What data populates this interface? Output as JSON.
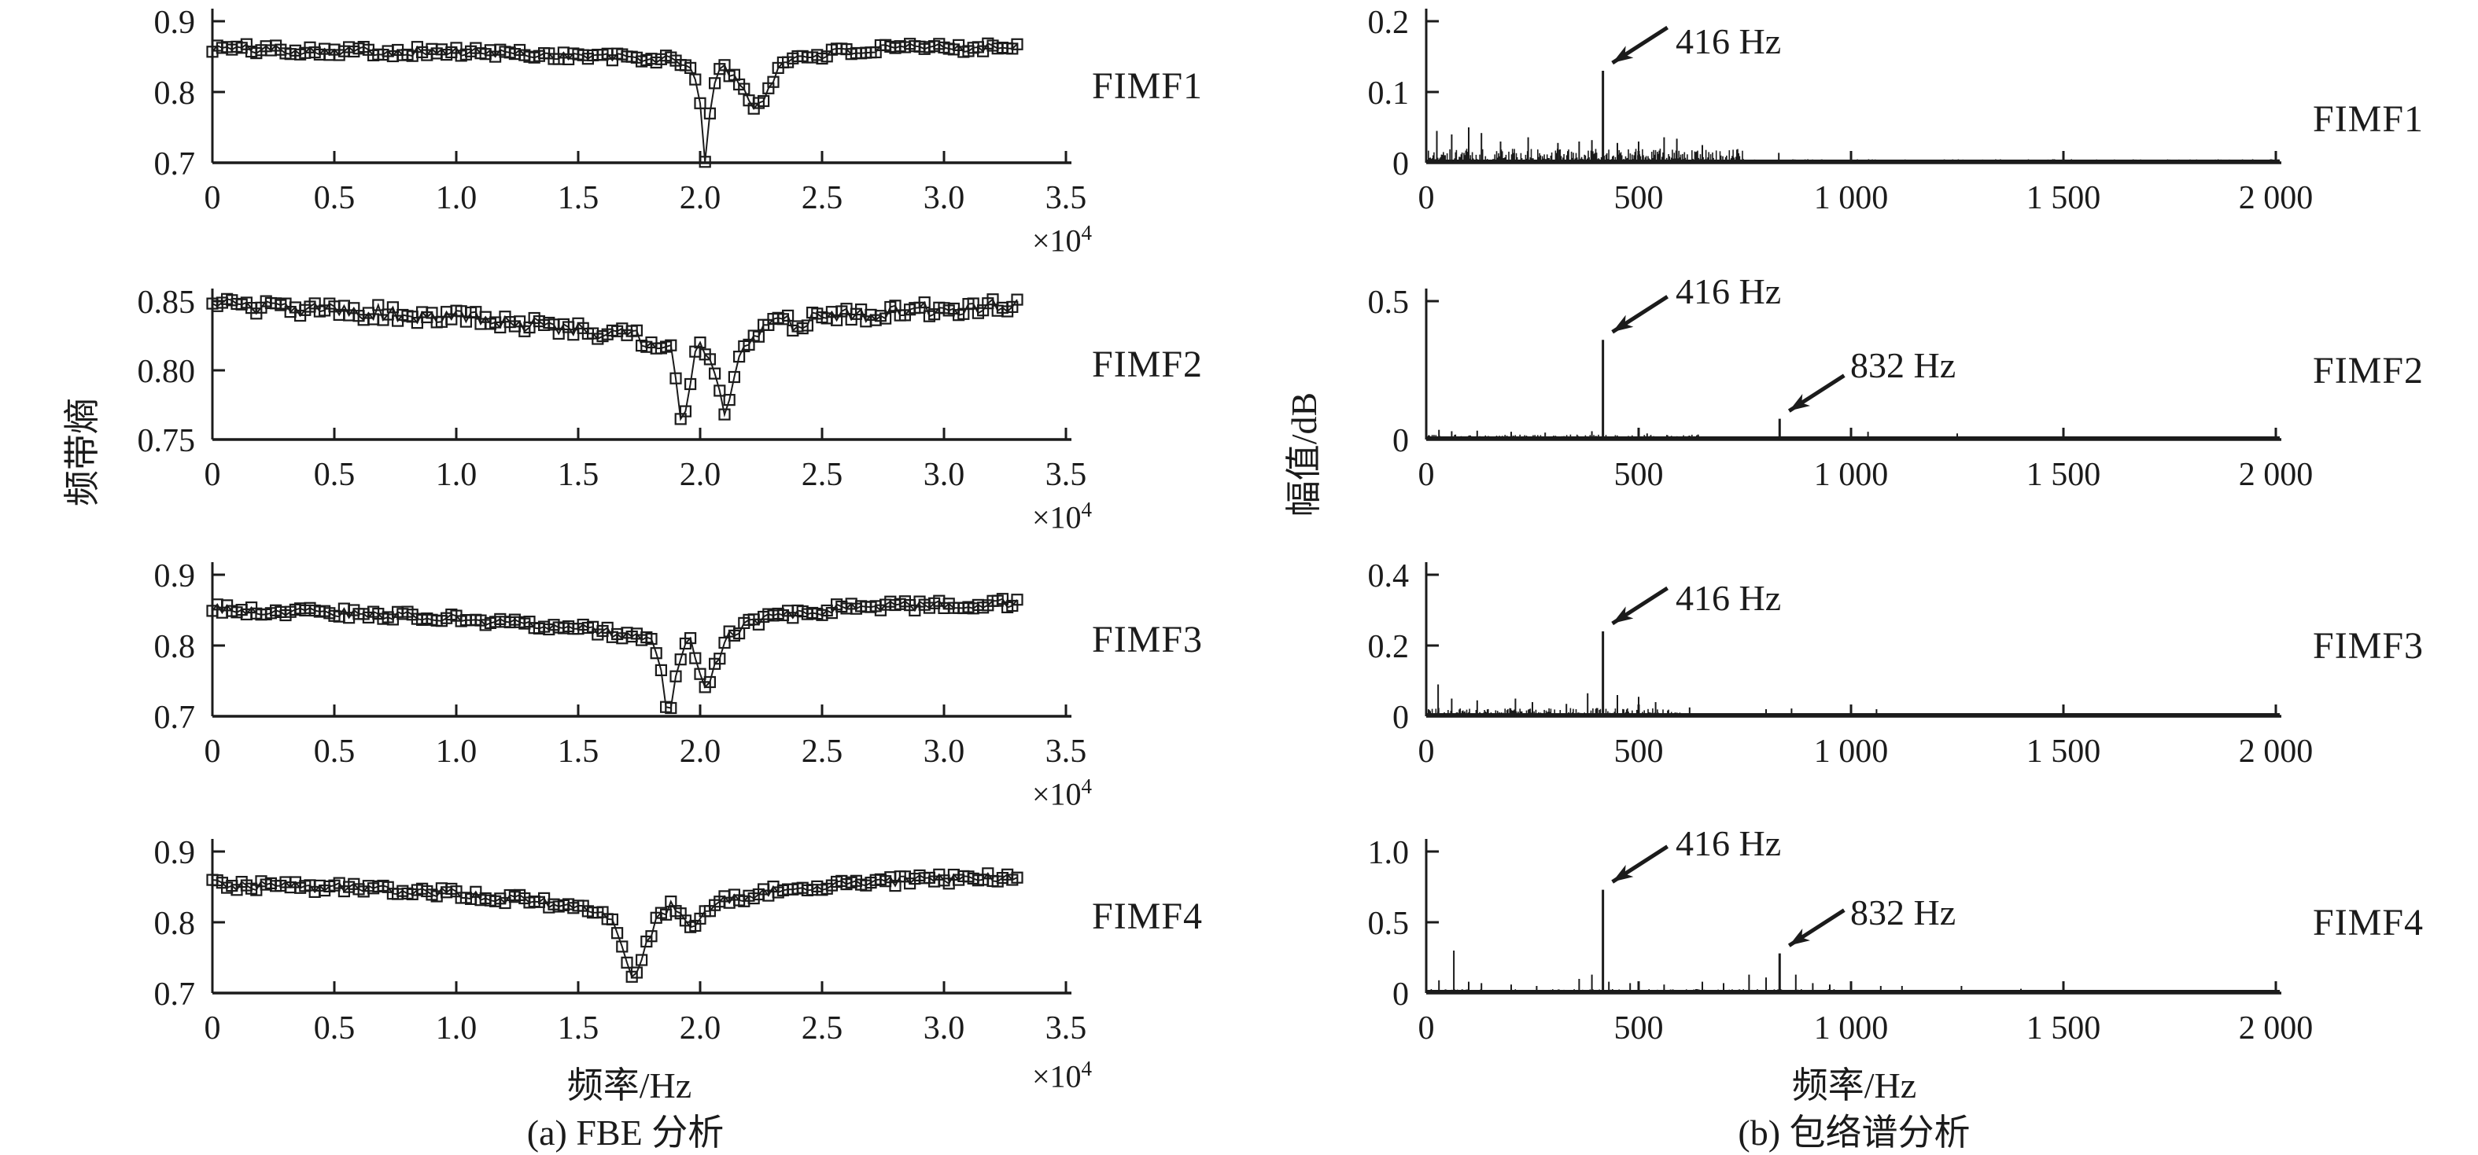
{
  "figure": {
    "left_panel": {
      "ylabel": "频带熵",
      "xlabel": "频率/Hz",
      "caption": "(a) FBE 分析",
      "multiplier_base": "×10",
      "multiplier_exp": "4"
    },
    "right_panel": {
      "ylabel": "幅值/dB",
      "xlabel": "频率/Hz",
      "caption": "(b) 包络谱分析"
    }
  },
  "chart_data": [
    {
      "id": "fbe-fimf1",
      "panel": "left",
      "type": "line",
      "label": "FIMF1",
      "marker": "open-square",
      "x_unit": "×10⁴ Hz",
      "xlim": [
        0,
        3.5
      ],
      "ylim": [
        0.7,
        0.9
      ],
      "x_end": 3.3,
      "noise": 0.007,
      "yticks": [
        {
          "v": 0.9,
          "t": "0.9"
        },
        {
          "v": 0.8,
          "t": "0.8"
        },
        {
          "v": 0.7,
          "t": "0.7"
        }
      ],
      "xticks": [
        {
          "v": 0,
          "t": "0"
        },
        {
          "v": 0.5,
          "t": "0.5"
        },
        {
          "v": 1,
          "t": "1.0"
        },
        {
          "v": 1.5,
          "t": "1.5"
        },
        {
          "v": 2,
          "t": "2.0"
        },
        {
          "v": 2.5,
          "t": "2.5"
        },
        {
          "v": 3,
          "t": "3.0"
        },
        {
          "v": 3.5,
          "t": "3.5"
        }
      ],
      "keypoints": [
        [
          0,
          0.862
        ],
        [
          0.3,
          0.86
        ],
        [
          0.6,
          0.858
        ],
        [
          0.9,
          0.857
        ],
        [
          1.2,
          0.855
        ],
        [
          1.5,
          0.851
        ],
        [
          1.8,
          0.847
        ],
        [
          1.95,
          0.842
        ],
        [
          2.0,
          0.79
        ],
        [
          2.02,
          0.703
        ],
        [
          2.05,
          0.8
        ],
        [
          2.08,
          0.838
        ],
        [
          2.12,
          0.828
        ],
        [
          2.18,
          0.8
        ],
        [
          2.22,
          0.778
        ],
        [
          2.26,
          0.79
        ],
        [
          2.32,
          0.835
        ],
        [
          2.4,
          0.85
        ],
        [
          2.6,
          0.857
        ],
        [
          2.9,
          0.862
        ],
        [
          3.3,
          0.865
        ]
      ]
    },
    {
      "id": "fbe-fimf2",
      "panel": "left",
      "type": "line",
      "label": "FIMF2",
      "marker": "open-square",
      "x_unit": "×10⁴ Hz",
      "xlim": [
        0,
        3.5
      ],
      "ylim": [
        0.75,
        0.85
      ],
      "x_end": 3.3,
      "noise": 0.006,
      "yticks": [
        {
          "v": 0.85,
          "t": "0.85"
        },
        {
          "v": 0.8,
          "t": "0.80"
        },
        {
          "v": 0.75,
          "t": "0.75"
        }
      ],
      "xticks": [
        {
          "v": 0,
          "t": "0"
        },
        {
          "v": 0.5,
          "t": "0.5"
        },
        {
          "v": 1,
          "t": "1.0"
        },
        {
          "v": 1.5,
          "t": "1.5"
        },
        {
          "v": 2,
          "t": "2.0"
        },
        {
          "v": 2.5,
          "t": "2.5"
        },
        {
          "v": 3,
          "t": "3.0"
        },
        {
          "v": 3.5,
          "t": "3.5"
        }
      ],
      "keypoints": [
        [
          0,
          0.846
        ],
        [
          0.4,
          0.844
        ],
        [
          0.8,
          0.84
        ],
        [
          1.2,
          0.835
        ],
        [
          1.5,
          0.83
        ],
        [
          1.75,
          0.824
        ],
        [
          1.88,
          0.818
        ],
        [
          1.91,
          0.78
        ],
        [
          1.93,
          0.757
        ],
        [
          1.96,
          0.79
        ],
        [
          2.0,
          0.825
        ],
        [
          2.05,
          0.8
        ],
        [
          2.1,
          0.772
        ],
        [
          2.15,
          0.8
        ],
        [
          2.2,
          0.822
        ],
        [
          2.3,
          0.832
        ],
        [
          2.6,
          0.84
        ],
        [
          3.0,
          0.845
        ],
        [
          3.3,
          0.848
        ]
      ]
    },
    {
      "id": "fbe-fimf3",
      "panel": "left",
      "type": "line",
      "label": "FIMF3",
      "marker": "open-square",
      "x_unit": "×10⁴ Hz",
      "xlim": [
        0,
        3.5
      ],
      "ylim": [
        0.7,
        0.9
      ],
      "x_end": 3.3,
      "noise": 0.007,
      "yticks": [
        {
          "v": 0.9,
          "t": "0.9"
        },
        {
          "v": 0.8,
          "t": "0.8"
        },
        {
          "v": 0.7,
          "t": "0.7"
        }
      ],
      "xticks": [
        {
          "v": 0,
          "t": "0"
        },
        {
          "v": 0.5,
          "t": "0.5"
        },
        {
          "v": 1,
          "t": "1.0"
        },
        {
          "v": 1.5,
          "t": "1.5"
        },
        {
          "v": 2,
          "t": "2.0"
        },
        {
          "v": 2.5,
          "t": "2.5"
        },
        {
          "v": 3,
          "t": "3.0"
        },
        {
          "v": 3.5,
          "t": "3.5"
        }
      ],
      "keypoints": [
        [
          0,
          0.852
        ],
        [
          0.4,
          0.848
        ],
        [
          0.8,
          0.842
        ],
        [
          1.2,
          0.834
        ],
        [
          1.5,
          0.824
        ],
        [
          1.7,
          0.815
        ],
        [
          1.8,
          0.805
        ],
        [
          1.84,
          0.76
        ],
        [
          1.87,
          0.695
        ],
        [
          1.9,
          0.75
        ],
        [
          1.95,
          0.815
        ],
        [
          2.0,
          0.76
        ],
        [
          2.03,
          0.732
        ],
        [
          2.07,
          0.78
        ],
        [
          2.12,
          0.815
        ],
        [
          2.2,
          0.832
        ],
        [
          2.35,
          0.845
        ],
        [
          2.6,
          0.853
        ],
        [
          3.0,
          0.858
        ],
        [
          3.3,
          0.86
        ]
      ]
    },
    {
      "id": "fbe-fimf4",
      "panel": "left",
      "type": "line",
      "label": "FIMF4",
      "marker": "open-square",
      "x_unit": "×10⁴ Hz",
      "xlim": [
        0,
        3.5
      ],
      "ylim": [
        0.7,
        0.9
      ],
      "x_end": 3.3,
      "noise": 0.007,
      "yticks": [
        {
          "v": 0.9,
          "t": "0.9"
        },
        {
          "v": 0.8,
          "t": "0.8"
        },
        {
          "v": 0.7,
          "t": "0.7"
        }
      ],
      "xticks": [
        {
          "v": 0,
          "t": "0"
        },
        {
          "v": 0.5,
          "t": "0.5"
        },
        {
          "v": 1,
          "t": "1.0"
        },
        {
          "v": 1.5,
          "t": "1.5"
        },
        {
          "v": 2,
          "t": "2.0"
        },
        {
          "v": 2.5,
          "t": "2.5"
        },
        {
          "v": 3,
          "t": "3.0"
        },
        {
          "v": 3.5,
          "t": "3.5"
        }
      ],
      "keypoints": [
        [
          0,
          0.853
        ],
        [
          0.4,
          0.85
        ],
        [
          0.8,
          0.845
        ],
        [
          1.1,
          0.838
        ],
        [
          1.4,
          0.826
        ],
        [
          1.55,
          0.818
        ],
        [
          1.65,
          0.8
        ],
        [
          1.7,
          0.75
        ],
        [
          1.73,
          0.717
        ],
        [
          1.77,
          0.76
        ],
        [
          1.82,
          0.8
        ],
        [
          1.88,
          0.823
        ],
        [
          1.93,
          0.81
        ],
        [
          1.97,
          0.796
        ],
        [
          2.02,
          0.815
        ],
        [
          2.1,
          0.83
        ],
        [
          2.25,
          0.842
        ],
        [
          2.5,
          0.852
        ],
        [
          2.9,
          0.86
        ],
        [
          3.3,
          0.865
        ]
      ]
    },
    {
      "id": "env-fimf1",
      "panel": "right",
      "type": "spectrum",
      "label": "FIMF1",
      "xlim": [
        0,
        2050
      ],
      "ylim": [
        0,
        0.2
      ],
      "yticks": [
        {
          "v": 0.2,
          "t": "0.2"
        },
        {
          "v": 0.1,
          "t": "0.1"
        },
        {
          "v": 0,
          "t": "0"
        }
      ],
      "xticks": [
        {
          "v": 0,
          "t": "0"
        },
        {
          "v": 500,
          "t": "500"
        },
        {
          "v": 1000,
          "t": "1 000"
        },
        {
          "v": 1500,
          "t": "1 500"
        },
        {
          "v": 2000,
          "t": "2 000"
        }
      ],
      "peaks": [
        {
          "f": 416,
          "a": 0.13
        }
      ],
      "minor_peaks": [
        [
          25,
          0.045
        ],
        [
          60,
          0.04
        ],
        [
          100,
          0.05
        ],
        [
          130,
          0.042
        ],
        [
          175,
          0.03
        ],
        [
          240,
          0.036
        ],
        [
          310,
          0.028
        ],
        [
          360,
          0.03
        ],
        [
          390,
          0.032
        ],
        [
          450,
          0.028
        ],
        [
          500,
          0.03
        ],
        [
          560,
          0.036
        ],
        [
          590,
          0.034
        ],
        [
          650,
          0.025
        ],
        [
          830,
          0.014
        ],
        [
          1000,
          0.008
        ],
        [
          1500,
          0.013
        ]
      ],
      "noise_floor": [
        [
          0,
          750,
          0.02
        ],
        [
          750,
          2010,
          0.005
        ]
      ],
      "annotations": [
        {
          "text": "416 Hz",
          "f": 416,
          "a": 0.13
        }
      ]
    },
    {
      "id": "env-fimf2",
      "panel": "right",
      "type": "spectrum",
      "label": "FIMF2",
      "xlim": [
        0,
        2050
      ],
      "ylim": [
        0,
        0.5
      ],
      "yticks": [
        {
          "v": 0.5,
          "t": "0.5"
        },
        {
          "v": 0,
          "t": "0"
        }
      ],
      "xticks": [
        {
          "v": 0,
          "t": "0"
        },
        {
          "v": 500,
          "t": "500"
        },
        {
          "v": 1000,
          "t": "1 000"
        },
        {
          "v": 1500,
          "t": "1 500"
        },
        {
          "v": 2000,
          "t": "2 000"
        }
      ],
      "peaks": [
        {
          "f": 416,
          "a": 0.36
        },
        {
          "f": 832,
          "a": 0.075
        }
      ],
      "minor_peaks": [
        [
          30,
          0.035
        ],
        [
          60,
          0.03
        ],
        [
          120,
          0.032
        ],
        [
          200,
          0.028
        ],
        [
          280,
          0.025
        ],
        [
          390,
          0.03
        ],
        [
          520,
          0.022
        ],
        [
          640,
          0.018
        ],
        [
          1040,
          0.028
        ],
        [
          1250,
          0.022
        ]
      ],
      "noise_floor": [
        [
          0,
          650,
          0.018
        ],
        [
          650,
          2010,
          0.006
        ]
      ],
      "annotations": [
        {
          "text": "416 Hz",
          "f": 416,
          "a": 0.36
        },
        {
          "text": "832 Hz",
          "f": 832,
          "a": 0.075
        }
      ]
    },
    {
      "id": "env-fimf3",
      "panel": "right",
      "type": "spectrum",
      "label": "FIMF3",
      "xlim": [
        0,
        2050
      ],
      "ylim": [
        0,
        0.4
      ],
      "yticks": [
        {
          "v": 0.4,
          "t": "0.4"
        },
        {
          "v": 0.2,
          "t": "0.2"
        },
        {
          "v": 0,
          "t": "0"
        }
      ],
      "xticks": [
        {
          "v": 0,
          "t": "0"
        },
        {
          "v": 500,
          "t": "500"
        },
        {
          "v": 1000,
          "t": "1 000"
        },
        {
          "v": 1500,
          "t": "1 500"
        },
        {
          "v": 2000,
          "t": "2 000"
        }
      ],
      "peaks": [
        {
          "f": 416,
          "a": 0.24
        }
      ],
      "minor_peaks": [
        [
          28,
          0.09
        ],
        [
          60,
          0.05
        ],
        [
          120,
          0.045
        ],
        [
          210,
          0.05
        ],
        [
          250,
          0.04
        ],
        [
          330,
          0.035
        ],
        [
          380,
          0.065
        ],
        [
          450,
          0.06
        ],
        [
          500,
          0.055
        ],
        [
          540,
          0.04
        ],
        [
          620,
          0.025
        ],
        [
          800,
          0.02
        ],
        [
          860,
          0.022
        ],
        [
          1060,
          0.02
        ]
      ],
      "noise_floor": [
        [
          0,
          600,
          0.024
        ],
        [
          600,
          2010,
          0.006
        ]
      ],
      "annotations": [
        {
          "text": "416 Hz",
          "f": 416,
          "a": 0.24
        }
      ]
    },
    {
      "id": "env-fimf4",
      "panel": "right",
      "type": "spectrum",
      "label": "FIMF4",
      "xlim": [
        0,
        2050
      ],
      "ylim": [
        0,
        1.0
      ],
      "yticks": [
        {
          "v": 1.0,
          "t": "1.0"
        },
        {
          "v": 0.5,
          "t": "0.5"
        },
        {
          "v": 0,
          "t": "0"
        }
      ],
      "xticks": [
        {
          "v": 0,
          "t": "0"
        },
        {
          "v": 500,
          "t": "500"
        },
        {
          "v": 1000,
          "t": "1 000"
        },
        {
          "v": 1500,
          "t": "1 500"
        },
        {
          "v": 2000,
          "t": "2 000"
        }
      ],
      "peaks": [
        {
          "f": 416,
          "a": 0.73
        },
        {
          "f": 832,
          "a": 0.28
        }
      ],
      "minor_peaks": [
        [
          30,
          0.09
        ],
        [
          65,
          0.3
        ],
        [
          100,
          0.08
        ],
        [
          130,
          0.07
        ],
        [
          200,
          0.06
        ],
        [
          260,
          0.05
        ],
        [
          360,
          0.1
        ],
        [
          390,
          0.13
        ],
        [
          430,
          0.08
        ],
        [
          480,
          0.07
        ],
        [
          560,
          0.06
        ],
        [
          650,
          0.08
        ],
        [
          700,
          0.07
        ],
        [
          760,
          0.13
        ],
        [
          800,
          0.11
        ],
        [
          870,
          0.13
        ],
        [
          910,
          0.07
        ],
        [
          950,
          0.06
        ],
        [
          1070,
          0.05
        ],
        [
          1120,
          0.05
        ],
        [
          1260,
          0.05
        ],
        [
          1400,
          0.03
        ],
        [
          1600,
          0.02
        ]
      ],
      "noise_floor": [
        [
          0,
          1000,
          0.028
        ],
        [
          1000,
          2010,
          0.012
        ]
      ],
      "annotations": [
        {
          "text": "416 Hz",
          "f": 416,
          "a": 0.73
        },
        {
          "text": "832 Hz",
          "f": 832,
          "a": 0.28
        }
      ]
    }
  ]
}
